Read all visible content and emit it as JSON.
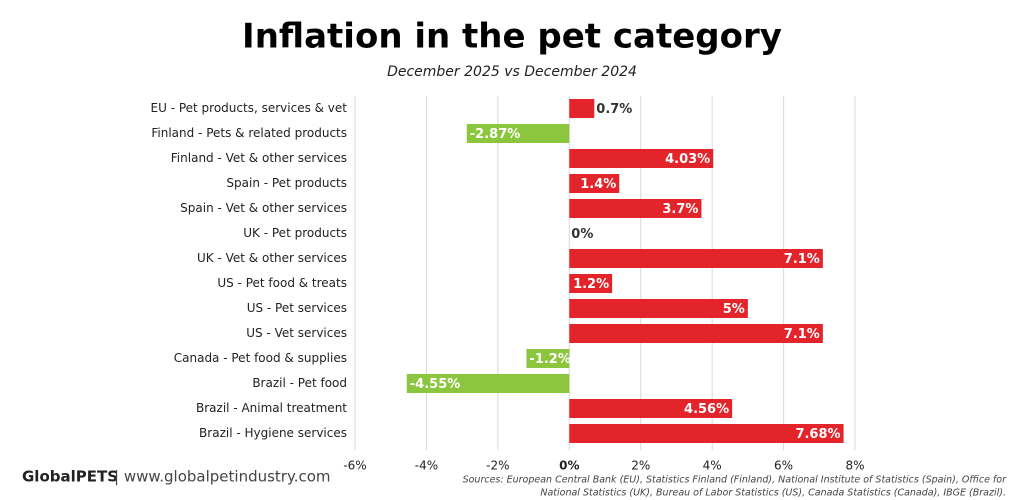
{
  "chart_data": {
    "type": "hbar",
    "title": "Inflation in the pet category",
    "subtitle": "December 2025 vs December 2024",
    "categories": [
      "EU - Pet products, services & vet",
      "Finland - Pets & related products",
      "Finland - Vet & other services",
      "Spain - Pet products",
      "Spain - Vet & other services",
      "UK - Pet products",
      "UK - Vet & other services",
      "US - Pet food & treats",
      "US - Pet services",
      "US - Vet services",
      "Canada - Pet food & supplies",
      "Brazil - Pet food",
      "Brazil - Animal treatment",
      "Brazil - Hygiene services"
    ],
    "values": [
      0.7,
      -2.87,
      4.03,
      1.4,
      3.7,
      0,
      7.1,
      1.2,
      5,
      7.1,
      -1.2,
      -4.55,
      4.56,
      7.68
    ],
    "value_labels": [
      "0.7%",
      "-2.87%",
      "4.03%",
      "1.4%",
      "3.7%",
      "0%",
      "7.1%",
      "1.2%",
      "5%",
      "7.1%",
      "-1.2%",
      "-4.55%",
      "4.56%",
      "7.68%"
    ],
    "color_positive": "#e3242b",
    "color_negative": "#8cc63f",
    "xlim": [
      -6,
      8
    ],
    "xticks": [
      {
        "value": -6,
        "label": "-6%"
      },
      {
        "value": -4,
        "label": "-4%"
      },
      {
        "value": -2,
        "label": "-2%"
      },
      {
        "value": 0,
        "label": "0%"
      },
      {
        "value": 2,
        "label": "2%"
      },
      {
        "value": 4,
        "label": "4%"
      },
      {
        "value": 6,
        "label": "6%"
      },
      {
        "value": 8,
        "label": "8%"
      }
    ],
    "grid": true,
    "footer": {
      "brand": "GlobalPETS",
      "site": "| www.globalpetindustry.com",
      "sources": [
        "Sources: European Central Bank (EU), Statistics Finland (Finland), National Institute of Statistics (Spain), Office for",
        "National Statistics (UK), Bureau of Labor Statistics (US), Canada Statistics (Canada), IBGE (Brazil)."
      ]
    }
  }
}
